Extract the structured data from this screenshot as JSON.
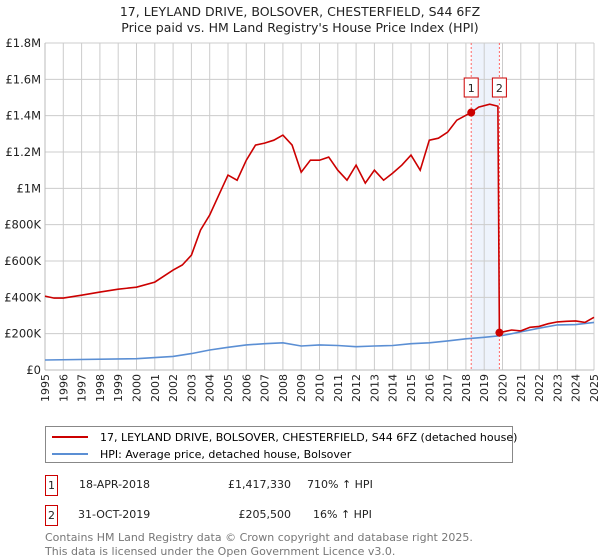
{
  "title": "17, LEYLAND DRIVE, BOLSOVER, CHESTERFIELD, S44 6FZ",
  "subtitle": "Price paid vs. HM Land Registry's House Price Index (HPI)",
  "chart_data": {
    "type": "line",
    "xlim": [
      1995,
      2025
    ],
    "ylim": [
      0,
      1800000
    ],
    "y_ticks": [
      {
        "v": 0,
        "label": "£0"
      },
      {
        "v": 200000,
        "label": "£200K"
      },
      {
        "v": 400000,
        "label": "£400K"
      },
      {
        "v": 600000,
        "label": "£600K"
      },
      {
        "v": 800000,
        "label": "£800K"
      },
      {
        "v": 1000000,
        "label": "£1M"
      },
      {
        "v": 1200000,
        "label": "£1.2M"
      },
      {
        "v": 1400000,
        "label": "£1.4M"
      },
      {
        "v": 1600000,
        "label": "£1.6M"
      },
      {
        "v": 1800000,
        "label": "£1.8M"
      }
    ],
    "x_ticks": [
      "1995",
      "1996",
      "1997",
      "1998",
      "1999",
      "2000",
      "2001",
      "2002",
      "2003",
      "2004",
      "2005",
      "2006",
      "2007",
      "2008",
      "2009",
      "2010",
      "2011",
      "2012",
      "2013",
      "2014",
      "2015",
      "2016",
      "2017",
      "2018",
      "2019",
      "2020",
      "2021",
      "2022",
      "2023",
      "2024",
      "2025"
    ],
    "series": [
      {
        "name": "17, LEYLAND DRIVE, BOLSOVER, CHESTERFIELD, S44 6FZ (detached house)",
        "color": "#cc0000",
        "x": [
          1995,
          1995.5,
          1996,
          1997,
          1998,
          1999,
          2000,
          2001,
          2002,
          2002.5,
          2003,
          2003.5,
          2004,
          2004.5,
          2005,
          2005.5,
          2006,
          2006.5,
          2007,
          2007.5,
          2008,
          2008.5,
          2009,
          2009.5,
          2010,
          2010.5,
          2011,
          2011.5,
          2012,
          2012.5,
          2013,
          2013.5,
          2014,
          2014.5,
          2015,
          2015.5,
          2016,
          2016.5,
          2017,
          2017.5,
          2018.29,
          2018.7,
          2019.3,
          2019.75,
          2019.83,
          2020.5,
          2021,
          2021.5,
          2022,
          2022.5,
          2023,
          2023.5,
          2024,
          2024.5,
          2025
        ],
        "y": [
          407000,
          396000,
          396000,
          412000,
          429000,
          445000,
          456000,
          484000,
          550000,
          578000,
          632000,
          770000,
          853000,
          963000,
          1073000,
          1045000,
          1155000,
          1238000,
          1249000,
          1265000,
          1293000,
          1238000,
          1089000,
          1155000,
          1155000,
          1172000,
          1100000,
          1045000,
          1128000,
          1029000,
          1100000,
          1045000,
          1084000,
          1128000,
          1183000,
          1100000,
          1265000,
          1276000,
          1309000,
          1375000,
          1417330,
          1447000,
          1463000,
          1452000,
          205500,
          220000,
          215000,
          235000,
          240000,
          255000,
          265000,
          268000,
          270000,
          262000,
          290000
        ]
      },
      {
        "name": "HPI: Average price, detached house, Bolsover",
        "color": "#5b8fd4",
        "x": [
          1995,
          2000,
          2002,
          2003,
          2004,
          2005,
          2006,
          2007,
          2008,
          2009,
          2010,
          2011,
          2012,
          2013,
          2014,
          2015,
          2016,
          2017,
          2018,
          2019,
          2020,
          2021,
          2022,
          2023,
          2024,
          2025
        ],
        "y": [
          55000,
          62000,
          75000,
          90000,
          110000,
          125000,
          138000,
          145000,
          150000,
          132000,
          138000,
          135000,
          128000,
          132000,
          135000,
          145000,
          150000,
          160000,
          172000,
          180000,
          190000,
          210000,
          230000,
          248000,
          250000,
          262000
        ]
      }
    ],
    "sales": [
      {
        "id": "1",
        "x": 2018.29,
        "y": 1417330
      },
      {
        "id": "2",
        "x": 2019.83,
        "y": 205500
      }
    ]
  },
  "legend": {
    "red": "17, LEYLAND DRIVE, BOLSOVER, CHESTERFIELD, S44 6FZ (detached house)",
    "blue": "HPI: Average price, detached house, Bolsover"
  },
  "transactions": [
    {
      "id": "1",
      "date": "18-APR-2018",
      "price": "£1,417,330",
      "hpi": "710% ↑ HPI"
    },
    {
      "id": "2",
      "date": "31-OCT-2019",
      "price": "£205,500",
      "hpi": "16% ↑ HPI"
    }
  ],
  "footer": [
    "Contains HM Land Registry data © Crown copyright and database right 2025.",
    "This data is licensed under the Open Government Licence v3.0."
  ]
}
